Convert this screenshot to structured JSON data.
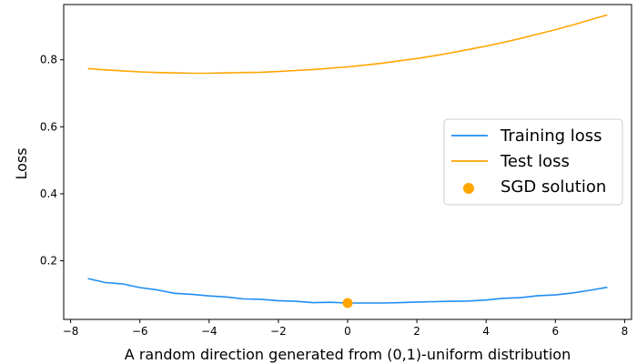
{
  "chart_data": {
    "type": "line",
    "title": "",
    "xlabel": "A random direction generated from (0,1)-uniform distribution",
    "ylabel": "Loss",
    "xlim": [
      -8.2,
      8.2
    ],
    "ylim": [
      0.025,
      0.965
    ],
    "xticks": [
      -8,
      -6,
      -4,
      -2,
      0,
      2,
      4,
      6,
      8
    ],
    "yticks": [
      0.2,
      0.4,
      0.6,
      0.8
    ],
    "xtick_labels": [
      "−8",
      "−6",
      "−4",
      "−2",
      "0",
      "2",
      "4",
      "6",
      "8"
    ],
    "ytick_labels": [
      "0.2",
      "0.4",
      "0.6",
      "0.8"
    ],
    "grid": false,
    "legend_position": "center-right",
    "x": [
      -7.5,
      -7.0,
      -6.5,
      -6.0,
      -5.5,
      -5.0,
      -4.5,
      -4.0,
      -3.5,
      -3.0,
      -2.5,
      -2.0,
      -1.5,
      -1.0,
      -0.5,
      0.0,
      0.5,
      1.0,
      1.5,
      2.0,
      2.5,
      3.0,
      3.5,
      4.0,
      4.5,
      5.0,
      5.5,
      6.0,
      6.5,
      7.0,
      7.5
    ],
    "series": [
      {
        "name": "Training loss",
        "color": "#1f8ef1",
        "marker": "none",
        "values": [
          0.147,
          0.135,
          0.131,
          0.12,
          0.113,
          0.103,
          0.1,
          0.095,
          0.092,
          0.086,
          0.085,
          0.081,
          0.079,
          0.075,
          0.076,
          0.074,
          0.074,
          0.074,
          0.075,
          0.077,
          0.078,
          0.079,
          0.08,
          0.083,
          0.088,
          0.09,
          0.096,
          0.098,
          0.104,
          0.112,
          0.121
        ]
      },
      {
        "name": "Test loss",
        "color": "#ffa500",
        "marker": "none",
        "values": [
          0.774,
          0.77,
          0.767,
          0.764,
          0.762,
          0.761,
          0.76,
          0.76,
          0.761,
          0.762,
          0.763,
          0.765,
          0.768,
          0.771,
          0.775,
          0.779,
          0.784,
          0.79,
          0.797,
          0.804,
          0.812,
          0.821,
          0.831,
          0.841,
          0.852,
          0.864,
          0.877,
          0.89,
          0.904,
          0.919,
          0.934
        ]
      },
      {
        "name": "SGD solution",
        "color": "#ffa500",
        "marker": "circle",
        "points": [
          [
            0.0,
            0.074
          ]
        ]
      }
    ]
  }
}
